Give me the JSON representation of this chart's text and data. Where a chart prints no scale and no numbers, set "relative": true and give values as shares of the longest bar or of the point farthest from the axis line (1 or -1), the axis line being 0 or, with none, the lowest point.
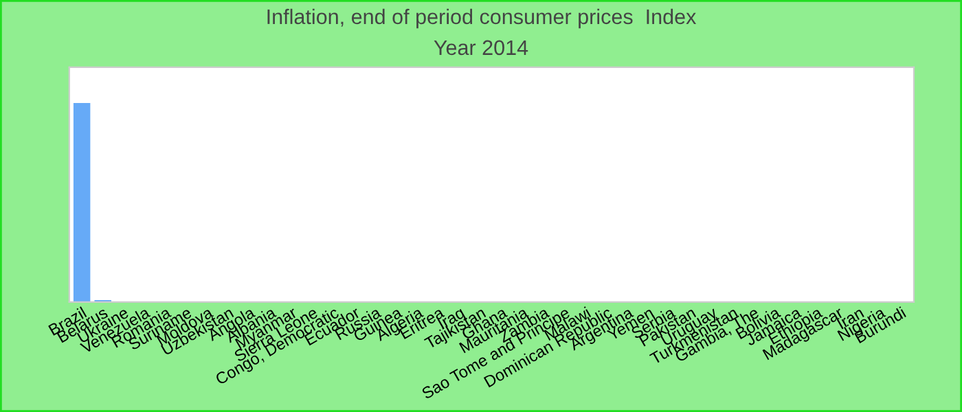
{
  "chart_data": {
    "type": "bar",
    "title": "Inflation, end of period consumer prices  Index",
    "subtitle": "Year 2014",
    "categories": [
      "Brazil",
      "Belarus",
      "Ukraine",
      "Venezuela",
      "Romania",
      "Suriname",
      "Moldova",
      "Uzbekistan",
      "Angola",
      "Albania",
      "Myanmar",
      "Sierra Leone",
      "Congo, Democratic",
      "Ecuador",
      "Russia",
      "Guinea",
      "Algeria",
      "Eritrea",
      "Iraq",
      "Tajikistan",
      "Ghana",
      "Mauritania",
      "Zambia",
      "Sao Tome and Principe",
      "Malawi",
      "Dominican Republic",
      "Argentina",
      "Yemen",
      "Serbia",
      "Pakistan",
      "Uruguay",
      "Turkmenistan",
      "Gambia, The",
      "Bolivia",
      "Jamaica",
      "Ethiopia",
      "Madagascar",
      "Iran",
      "Nigeria",
      "Burundi"
    ],
    "values": [
      1,
      0.01,
      0,
      0,
      0,
      0,
      0,
      0,
      0,
      0,
      0,
      0,
      0,
      0,
      0,
      0,
      0,
      0,
      0,
      0,
      0,
      0,
      0,
      0,
      0,
      0,
      0,
      0,
      0,
      0,
      0,
      0,
      0,
      0,
      0,
      0,
      0,
      0,
      0,
      0
    ],
    "color": "#66aaf7",
    "relative": true,
    "legend": false
  }
}
